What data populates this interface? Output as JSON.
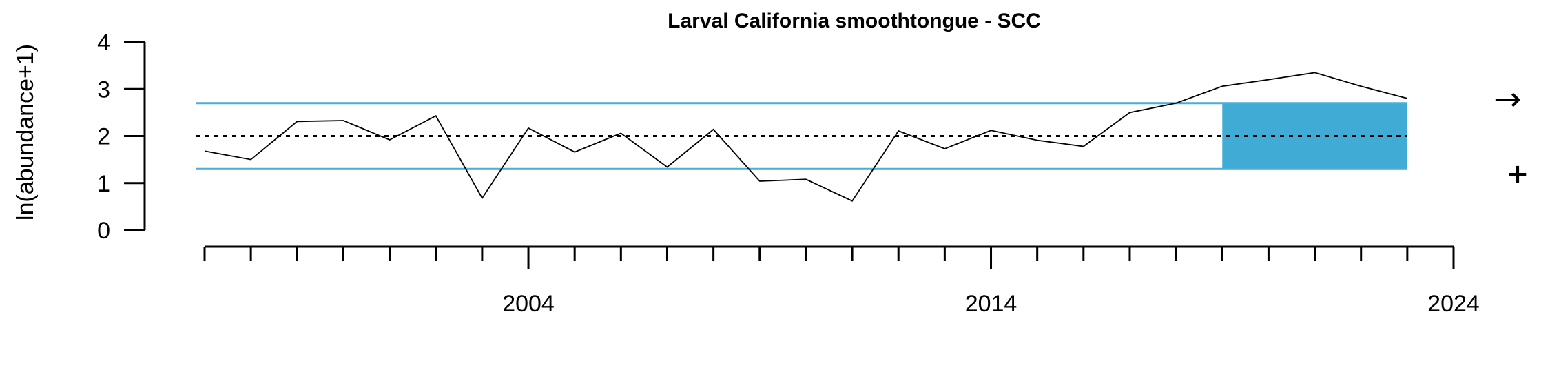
{
  "chart_data": {
    "type": "line",
    "title": "Larval California smoothtongue - SCC",
    "xlabel": "",
    "ylabel": "ln(abundance+1)",
    "xlim": [
      1997,
      2024
    ],
    "ylim": [
      0,
      4
    ],
    "x_ticks_major": [
      2004,
      2014,
      2024
    ],
    "x_ticks_minor": [
      1997,
      1998,
      1999,
      2000,
      2001,
      2002,
      2003,
      2005,
      2006,
      2007,
      2008,
      2009,
      2010,
      2011,
      2012,
      2013,
      2015,
      2016,
      2017,
      2018,
      2019,
      2020,
      2021,
      2022,
      2023
    ],
    "y_ticks": [
      0,
      1,
      2,
      3,
      4
    ],
    "x": [
      1997,
      1998,
      1999,
      2000,
      2001,
      2002,
      2003,
      2004,
      2005,
      2006,
      2007,
      2008,
      2009,
      2010,
      2011,
      2012,
      2013,
      2014,
      2015,
      2016,
      2017,
      2018,
      2019,
      2020,
      2021,
      2022,
      2023
    ],
    "values": [
      1.68,
      1.5,
      2.31,
      2.33,
      1.92,
      2.43,
      0.68,
      2.17,
      1.66,
      2.06,
      1.34,
      2.14,
      1.04,
      1.08,
      0.62,
      2.11,
      1.73,
      2.12,
      1.91,
      1.78,
      2.5,
      2.7,
      3.06,
      3.2,
      3.35,
      3.06,
      2.8
    ],
    "mean": 2.0,
    "upper_sd": 2.7,
    "lower_sd": 1.3,
    "recent_window": [
      2019,
      2023
    ],
    "trend_symbol": "→",
    "mean_symbol": "+",
    "colors": {
      "sd_lines": "#4aaed8",
      "recent_fill": "#40acd6",
      "series": "#000000",
      "mean_line": "#000000"
    }
  }
}
